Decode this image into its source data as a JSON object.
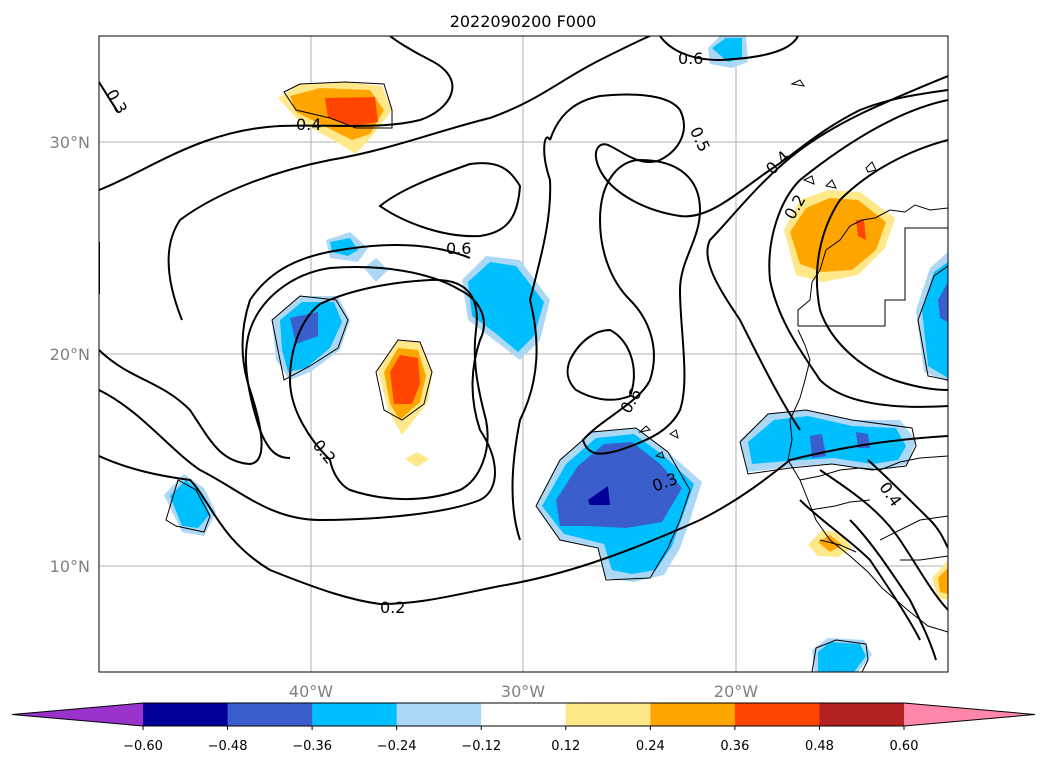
{
  "title": "2022090200 F000",
  "lat_ticks": [
    "30°N",
    "20°N",
    "10°N"
  ],
  "lon_ticks": [
    "40°W",
    "30°W",
    "20°W"
  ],
  "contour_labels": [
    "0.3",
    "0.4",
    "0.6",
    "0.5",
    "0.4",
    "0.2",
    "0.6",
    "0.6",
    "0.2",
    "0.3",
    "0.2",
    "0.4"
  ],
  "colorbar": {
    "tick_labels": [
      "−0.60",
      "−0.48",
      "−0.36",
      "−0.24",
      "−0.12",
      "0.12",
      "0.24",
      "0.36",
      "0.48",
      "0.60"
    ],
    "colors": [
      "#9933cc",
      "#000099",
      "#3a5fcd",
      "#00bfff",
      "#add8f5",
      "#ffffff",
      "#ffe88a",
      "#ffa500",
      "#ff4500",
      "#b22222",
      "#ff88aa"
    ]
  },
  "fill_colors": {
    "light_blue": "#add8f5",
    "cyan": "#00bfff",
    "medium_blue": "#3a5fcd",
    "navy": "#000099",
    "yellow": "#ffe88a",
    "orange": "#ffa500",
    "red_orange": "#ff4500"
  }
}
